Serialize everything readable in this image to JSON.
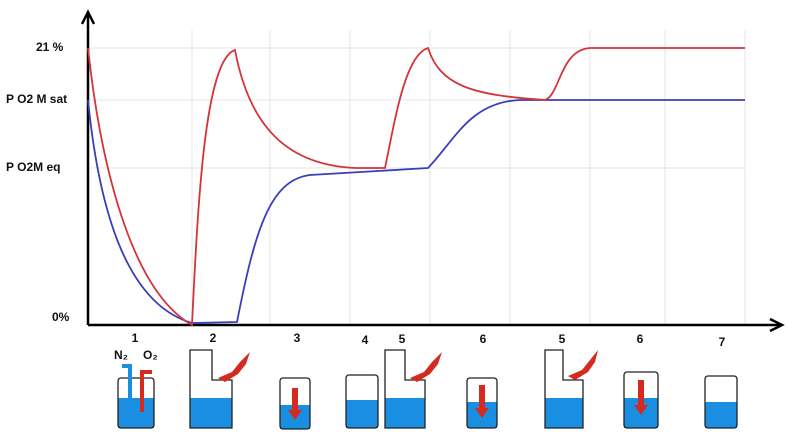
{
  "y_labels": [
    "21 %",
    "P O2 M sat",
    "P O2M eq",
    "0%"
  ],
  "phase_labels": [
    "1",
    "2",
    "3",
    "4",
    "5",
    "6",
    "5",
    "6",
    "7"
  ],
  "gas_labels": [
    "N₂",
    "O₂"
  ]
}
